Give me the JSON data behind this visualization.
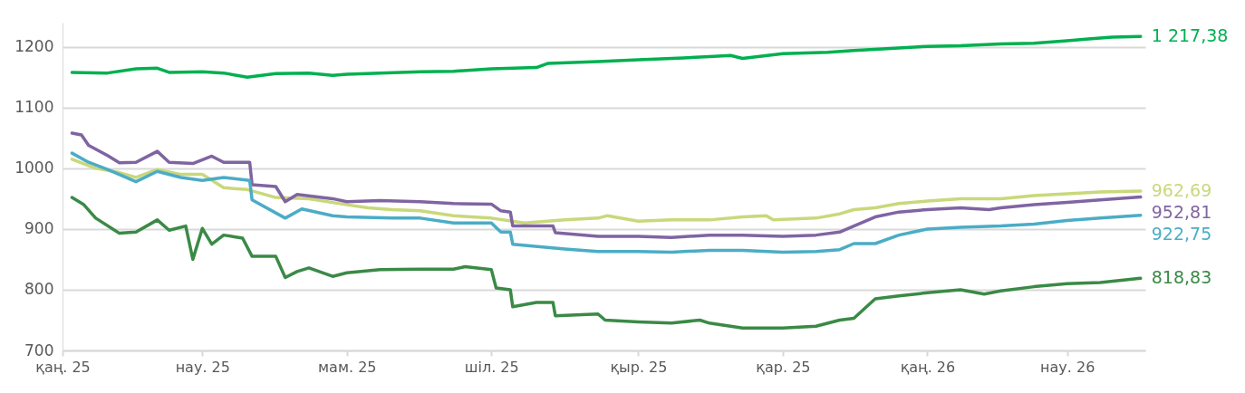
{
  "chart_data": {
    "type": "line",
    "xlim": [
      "2025-01-01",
      "2026-04-03"
    ],
    "xticks": [
      {
        "value": "2025-01-01",
        "label": "қаң. 25"
      },
      {
        "value": "2025-03-01",
        "label": "нау. 25"
      },
      {
        "value": "2025-05-01",
        "label": "мам. 25"
      },
      {
        "value": "2025-07-01",
        "label": "шіл. 25"
      },
      {
        "value": "2025-09-01",
        "label": "қыр. 25"
      },
      {
        "value": "2025-11-01",
        "label": "қар. 25"
      },
      {
        "value": "2026-01-01",
        "label": "қаң. 26"
      },
      {
        "value": "2026-03-01",
        "label": "нау. 26"
      }
    ],
    "ylim": [
      700,
      1240
    ],
    "yticks": [
      700,
      800,
      900,
      1000,
      1100,
      1200
    ],
    "grid": "y",
    "series": [
      {
        "color": "#00b050",
        "x": [
          "2025-01-05",
          "2025-01-20",
          "2025-02-01",
          "2025-02-10",
          "2025-02-15",
          "2025-03-01",
          "2025-03-10",
          "2025-03-20",
          "2025-04-01",
          "2025-04-15",
          "2025-04-25",
          "2025-05-01",
          "2025-05-15",
          "2025-06-01",
          "2025-06-15",
          "2025-07-01",
          "2025-07-20",
          "2025-07-25",
          "2025-08-15",
          "2025-09-01",
          "2025-09-20",
          "2025-10-01",
          "2025-10-10",
          "2025-10-15",
          "2025-11-01",
          "2025-11-20",
          "2025-12-01",
          "2025-12-15",
          "2026-01-01",
          "2026-01-15",
          "2026-02-01",
          "2026-02-15",
          "2026-03-01",
          "2026-03-10",
          "2026-03-20",
          "2026-04-01"
        ],
        "values": [
          1158,
          1157,
          1164,
          1165,
          1158,
          1159,
          1157,
          1150,
          1156,
          1157,
          1153,
          1155,
          1157,
          1159,
          1160,
          1164,
          1166,
          1173,
          1176,
          1179,
          1182,
          1184,
          1186,
          1181,
          1189,
          1191,
          1194,
          1197,
          1201,
          1202,
          1205,
          1206,
          1210,
          1213,
          1216,
          1217.38
        ],
        "value_labels": [
          null,
          null,
          null,
          null,
          null,
          null,
          null,
          null,
          null,
          null,
          null,
          null,
          null,
          null,
          null,
          null,
          null,
          null,
          null,
          null,
          null,
          null,
          null,
          null,
          null,
          null,
          null,
          null,
          null,
          null,
          null,
          null,
          null,
          null,
          null,
          "1 217,38"
        ]
      },
      {
        "color": "#c9d87a",
        "x": [
          "2025-01-05",
          "2025-01-15",
          "2025-01-25",
          "2025-02-01",
          "2025-02-10",
          "2025-02-20",
          "2025-03-01",
          "2025-03-10",
          "2025-03-20",
          "2025-04-01",
          "2025-04-15",
          "2025-05-01",
          "2025-05-10",
          "2025-05-20",
          "2025-06-01",
          "2025-06-15",
          "2025-07-01",
          "2025-07-15",
          "2025-08-01",
          "2025-08-15",
          "2025-08-19",
          "2025-09-01",
          "2025-09-15",
          "2025-10-01",
          "2025-10-15",
          "2025-10-25",
          "2025-10-28",
          "2025-11-15",
          "2025-11-25",
          "2025-12-01",
          "2025-12-10",
          "2025-12-20",
          "2026-01-01",
          "2026-01-15",
          "2026-02-01",
          "2026-02-15",
          "2026-03-01",
          "2026-03-15",
          "2026-04-01"
        ],
        "values": [
          1015,
          1000,
          993,
          985,
          998,
          990,
          990,
          968,
          965,
          952,
          950,
          940,
          935,
          932,
          930,
          922,
          918,
          910,
          915,
          918,
          922,
          913,
          915,
          915,
          920,
          922,
          915,
          918,
          925,
          932,
          935,
          942,
          946,
          950,
          950,
          955,
          958,
          961,
          962.69
        ],
        "value_labels": [
          null,
          null,
          null,
          null,
          null,
          null,
          null,
          null,
          null,
          null,
          null,
          null,
          null,
          null,
          null,
          null,
          null,
          null,
          null,
          null,
          null,
          null,
          null,
          null,
          null,
          null,
          null,
          null,
          null,
          null,
          null,
          null,
          null,
          null,
          null,
          null,
          null,
          null,
          "962,69"
        ]
      },
      {
        "color": "#8064a2",
        "x": [
          "2025-01-05",
          "2025-01-09",
          "2025-01-12",
          "2025-01-20",
          "2025-01-25",
          "2025-02-01",
          "2025-02-10",
          "2025-02-15",
          "2025-02-25",
          "2025-03-05",
          "2025-03-10",
          "2025-03-21",
          "2025-03-22",
          "2025-04-01",
          "2025-04-05",
          "2025-04-10",
          "2025-04-25",
          "2025-05-01",
          "2025-05-15",
          "2025-06-01",
          "2025-06-15",
          "2025-07-01",
          "2025-07-05",
          "2025-07-09",
          "2025-07-10",
          "2025-07-27",
          "2025-07-28",
          "2025-08-15",
          "2025-09-01",
          "2025-09-15",
          "2025-10-01",
          "2025-10-15",
          "2025-11-01",
          "2025-11-15",
          "2025-11-25",
          "2025-12-01",
          "2025-12-10",
          "2025-12-20",
          "2026-01-01",
          "2026-01-15",
          "2026-01-27",
          "2026-02-01",
          "2026-02-15",
          "2026-03-01",
          "2026-03-15",
          "2026-04-01"
        ],
        "values": [
          1058,
          1055,
          1038,
          1021,
          1009,
          1010,
          1028,
          1010,
          1008,
          1020,
          1010,
          1010,
          973,
          970,
          945,
          957,
          950,
          945,
          947,
          945,
          942,
          941,
          930,
          928,
          905,
          905,
          894,
          888,
          888,
          886,
          890,
          890,
          888,
          890,
          895,
          905,
          920,
          928,
          932,
          935,
          932,
          935,
          940,
          944,
          948,
          952.81
        ],
        "value_labels": [
          null,
          null,
          null,
          null,
          null,
          null,
          null,
          null,
          null,
          null,
          null,
          null,
          null,
          null,
          null,
          null,
          null,
          null,
          null,
          null,
          null,
          null,
          null,
          null,
          null,
          null,
          null,
          null,
          null,
          null,
          null,
          null,
          null,
          null,
          null,
          null,
          null,
          null,
          null,
          null,
          null,
          null,
          null,
          null,
          null,
          "952,81"
        ]
      },
      {
        "color": "#4bacc6",
        "x": [
          "2025-01-05",
          "2025-01-12",
          "2025-01-20",
          "2025-02-01",
          "2025-02-10",
          "2025-02-20",
          "2025-03-01",
          "2025-03-10",
          "2025-03-21",
          "2025-03-22",
          "2025-04-05",
          "2025-04-12",
          "2025-04-25",
          "2025-05-01",
          "2025-05-20",
          "2025-06-01",
          "2025-06-15",
          "2025-07-01",
          "2025-07-05",
          "2025-07-09",
          "2025-07-10",
          "2025-08-01",
          "2025-08-15",
          "2025-09-01",
          "2025-09-15",
          "2025-10-01",
          "2025-10-15",
          "2025-11-01",
          "2025-11-15",
          "2025-11-25",
          "2025-12-01",
          "2025-12-10",
          "2025-12-20",
          "2026-01-01",
          "2026-01-15",
          "2026-02-01",
          "2026-02-15",
          "2026-03-01",
          "2026-03-15",
          "2026-04-01"
        ],
        "values": [
          1025,
          1010,
          998,
          978,
          995,
          985,
          980,
          985,
          980,
          948,
          918,
          933,
          922,
          920,
          918,
          918,
          910,
          910,
          895,
          895,
          875,
          867,
          863,
          863,
          862,
          865,
          865,
          862,
          863,
          866,
          876,
          876,
          890,
          900,
          903,
          905,
          908,
          914,
          918,
          922.75
        ],
        "value_labels": [
          null,
          null,
          null,
          null,
          null,
          null,
          null,
          null,
          null,
          null,
          null,
          null,
          null,
          null,
          null,
          null,
          null,
          null,
          null,
          null,
          null,
          null,
          null,
          null,
          null,
          null,
          null,
          null,
          null,
          null,
          null,
          null,
          null,
          null,
          null,
          null,
          null,
          null,
          null,
          "922,75"
        ]
      },
      {
        "color": "#3a8a46",
        "x": [
          "2025-01-05",
          "2025-01-10",
          "2025-01-15",
          "2025-01-25",
          "2025-02-01",
          "2025-02-10",
          "2025-02-15",
          "2025-02-22",
          "2025-02-25",
          "2025-03-01",
          "2025-03-05",
          "2025-03-10",
          "2025-03-18",
          "2025-03-22",
          "2025-04-01",
          "2025-04-05",
          "2025-04-10",
          "2025-04-15",
          "2025-04-25",
          "2025-05-01",
          "2025-05-15",
          "2025-06-01",
          "2025-06-15",
          "2025-06-20",
          "2025-07-01",
          "2025-07-03",
          "2025-07-09",
          "2025-07-10",
          "2025-07-20",
          "2025-07-27",
          "2025-07-28",
          "2025-08-15",
          "2025-08-18",
          "2025-09-01",
          "2025-09-15",
          "2025-09-27",
          "2025-10-01",
          "2025-10-15",
          "2025-11-01",
          "2025-11-15",
          "2025-11-25",
          "2025-12-01",
          "2025-12-10",
          "2025-12-20",
          "2026-01-01",
          "2026-01-15",
          "2026-01-25",
          "2026-02-01",
          "2026-02-15",
          "2026-03-01",
          "2026-03-15",
          "2026-04-01"
        ],
        "values": [
          952,
          940,
          918,
          893,
          895,
          915,
          898,
          905,
          850,
          901,
          875,
          890,
          885,
          855,
          855,
          820,
          830,
          836,
          822,
          828,
          833,
          834,
          834,
          838,
          833,
          803,
          800,
          772,
          779,
          779,
          757,
          760,
          750,
          747,
          745,
          750,
          745,
          737,
          737,
          740,
          750,
          753,
          785,
          790,
          795,
          800,
          793,
          798,
          805,
          810,
          812,
          818.83
        ],
        "value_labels": [
          null,
          null,
          null,
          null,
          null,
          null,
          null,
          null,
          null,
          null,
          null,
          null,
          null,
          null,
          null,
          null,
          null,
          null,
          null,
          null,
          null,
          null,
          null,
          null,
          null,
          null,
          null,
          null,
          null,
          null,
          null,
          null,
          null,
          null,
          null,
          null,
          null,
          null,
          null,
          null,
          null,
          null,
          null,
          null,
          null,
          null,
          null,
          null,
          null,
          null,
          null,
          "818,83"
        ]
      }
    ]
  }
}
